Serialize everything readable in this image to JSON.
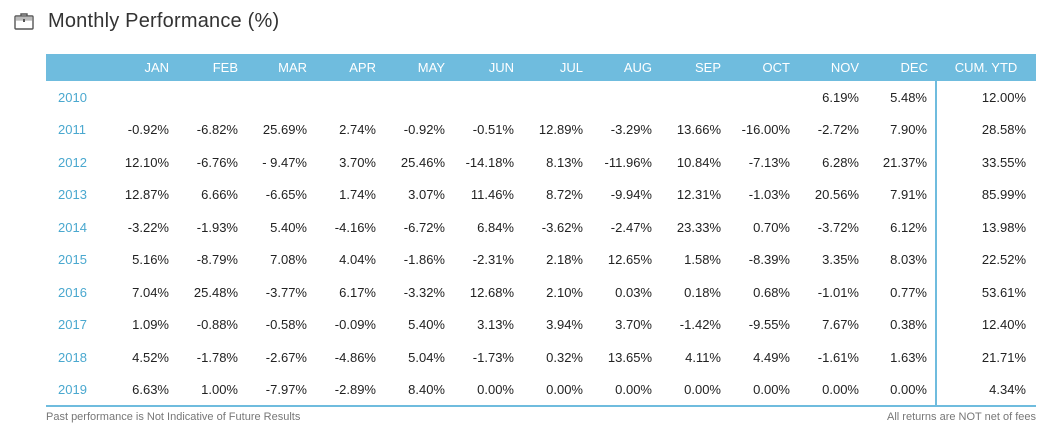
{
  "header": {
    "title": "Monthly Performance (%)",
    "icon": "briefcase-icon"
  },
  "table": {
    "columns": [
      "",
      "JAN",
      "FEB",
      "MAR",
      "APR",
      "MAY",
      "JUN",
      "JUL",
      "AUG",
      "SEP",
      "OCT",
      "NOV",
      "DEC",
      "CUM. YTD"
    ],
    "rows": [
      [
        "2010",
        "",
        "",
        "",
        "",
        "",
        "",
        "",
        "",
        "",
        "",
        "6.19%",
        "5.48%",
        "12.00%"
      ],
      [
        "2011",
        "-0.92%",
        "-6.82%",
        "25.69%",
        "2.74%",
        "-0.92%",
        "-0.51%",
        "12.89%",
        "-3.29%",
        "13.66%",
        "-16.00%",
        "-2.72%",
        "7.90%",
        "28.58%"
      ],
      [
        "2012",
        "12.10%",
        "-6.76%",
        "- 9.47%",
        "3.70%",
        "25.46%",
        "-14.18%",
        "8.13%",
        "-11.96%",
        "10.84%",
        "-7.13%",
        "6.28%",
        "21.37%",
        "33.55%"
      ],
      [
        "2013",
        "12.87%",
        "6.66%",
        "-6.65%",
        "1.74%",
        "3.07%",
        "11.46%",
        "8.72%",
        "-9.94%",
        "12.31%",
        "-1.03%",
        "20.56%",
        "7.91%",
        "85.99%"
      ],
      [
        "2014",
        "-3.22%",
        "-1.93%",
        "5.40%",
        "-4.16%",
        "-6.72%",
        "6.84%",
        "-3.62%",
        "-2.47%",
        "23.33%",
        "0.70%",
        "-3.72%",
        "6.12%",
        "13.98%"
      ],
      [
        "2015",
        "5.16%",
        "-8.79%",
        "7.08%",
        "4.04%",
        "-1.86%",
        "-2.31%",
        "2.18%",
        "12.65%",
        "1.58%",
        "-8.39%",
        "3.35%",
        "8.03%",
        "22.52%"
      ],
      [
        "2016",
        "7.04%",
        "25.48%",
        "-3.77%",
        "6.17%",
        "-3.32%",
        "12.68%",
        "2.10%",
        "0.03%",
        "0.18%",
        "0.68%",
        "-1.01%",
        "0.77%",
        "53.61%"
      ],
      [
        "2017",
        "1.09%",
        "-0.88%",
        "-0.58%",
        "-0.09%",
        "5.40%",
        "3.13%",
        "3.94%",
        "3.70%",
        "-1.42%",
        "-9.55%",
        "7.67%",
        "0.38%",
        "12.40%"
      ],
      [
        "2018",
        "4.52%",
        "-1.78%",
        "-2.67%",
        "-4.86%",
        "5.04%",
        "-1.73%",
        "0.32%",
        "13.65%",
        "4.11%",
        "4.49%",
        "-1.61%",
        "1.63%",
        "21.71%"
      ],
      [
        "2019",
        "6.63%",
        "1.00%",
        "-7.97%",
        "-2.89%",
        "8.40%",
        "0.00%",
        "0.00%",
        "0.00%",
        "0.00%",
        "0.00%",
        "0.00%",
        "0.00%",
        "4.34%"
      ]
    ]
  },
  "footer": {
    "left": "Past performance is Not Indicative of Future Results",
    "right": "All returns are  NOT net of fees"
  },
  "colors": {
    "accent": "#6fbcde",
    "year": "#4aa8cf"
  }
}
